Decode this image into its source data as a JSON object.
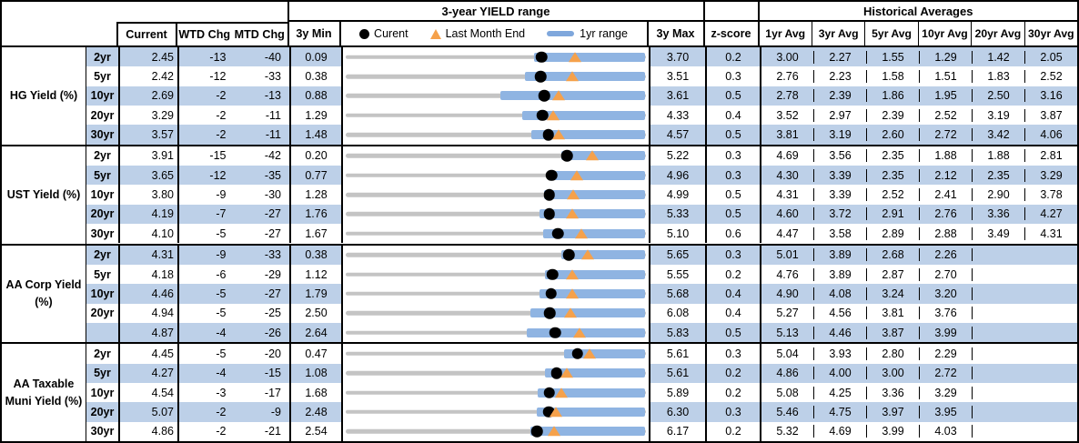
{
  "header": {
    "range_title": "3-year YIELD range",
    "historical_title": "Historical Averages",
    "col_current": "Current",
    "col_wtd": "WTD Chg",
    "col_mtd": "MTD Chg",
    "col_min": "3y Min",
    "col_max": "3y Max",
    "col_zscore": "z-score",
    "avg_cols": [
      "1yr Avg",
      "3yr Avg",
      "5yr Avg",
      "10yr Avg",
      "20yr Avg",
      "30yr Avg"
    ],
    "legend": {
      "current_label": "Curent",
      "last_month_label": "Last Month End",
      "range_label": "1yr range"
    }
  },
  "colors": {
    "stripe_blue": "#BDD0E8",
    "range_bar_blue": "#8FB4E2",
    "track_gray": "#C4C4C4",
    "triangle_orange": "#F5A14B",
    "dot_black": "#000000",
    "border_black": "#000000"
  },
  "chart_data": {
    "type": "table",
    "description_of_row_chart": "Each row has a bullet range chart spanning 3y Min to 3y Max: gray full-range track, blue 1yr-range bar, black dot = current yield, orange triangle = last month end yield.",
    "sections": [
      {
        "label": "HG Yield (%)",
        "rows": [
          {
            "tenor": "2yr",
            "current": "2.45",
            "wtd_chg": "-13",
            "mtd_chg": "-40",
            "min_3y": "0.09",
            "max_3y": "3.70",
            "z_score": "0.2",
            "avgs": [
              "3.00",
              "2.27",
              "1.55",
              "1.29",
              "1.42",
              "2.05"
            ],
            "range_chart": {
              "axis_min": 0.09,
              "axis_max": 3.7,
              "current": 2.45,
              "last_month_end": 2.85,
              "bar_1yr_lo": 2.36,
              "bar_1yr_hi": 3.7
            }
          },
          {
            "tenor": "5yr",
            "current": "2.42",
            "wtd_chg": "-12",
            "mtd_chg": "-33",
            "min_3y": "0.38",
            "max_3y": "3.51",
            "z_score": "0.3",
            "avgs": [
              "2.76",
              "2.23",
              "1.58",
              "1.51",
              "1.83",
              "2.52"
            ],
            "range_chart": {
              "axis_min": 0.38,
              "axis_max": 3.51,
              "current": 2.42,
              "last_month_end": 2.75,
              "bar_1yr_lo": 2.25,
              "bar_1yr_hi": 3.51
            }
          },
          {
            "tenor": "10yr",
            "current": "2.69",
            "wtd_chg": "-2",
            "mtd_chg": "-13",
            "min_3y": "0.88",
            "max_3y": "3.61",
            "z_score": "0.5",
            "avgs": [
              "2.78",
              "2.39",
              "1.86",
              "1.95",
              "2.50",
              "3.16"
            ],
            "range_chart": {
              "axis_min": 0.88,
              "axis_max": 3.61,
              "current": 2.69,
              "last_month_end": 2.82,
              "bar_1yr_lo": 2.29,
              "bar_1yr_hi": 3.61
            }
          },
          {
            "tenor": "20yr",
            "current": "3.29",
            "wtd_chg": "-2",
            "mtd_chg": "-11",
            "min_3y": "1.29",
            "max_3y": "4.33",
            "z_score": "0.4",
            "avgs": [
              "3.52",
              "2.97",
              "2.39",
              "2.52",
              "3.19",
              "3.87"
            ],
            "range_chart": {
              "axis_min": 1.29,
              "axis_max": 4.33,
              "current": 3.29,
              "last_month_end": 3.4,
              "bar_1yr_lo": 3.08,
              "bar_1yr_hi": 4.33
            }
          },
          {
            "tenor": "30yr",
            "current": "3.57",
            "wtd_chg": "-2",
            "mtd_chg": "-11",
            "min_3y": "1.48",
            "max_3y": "4.57",
            "z_score": "0.5",
            "avgs": [
              "3.81",
              "3.19",
              "2.60",
              "2.72",
              "3.42",
              "4.06"
            ],
            "range_chart": {
              "axis_min": 1.48,
              "axis_max": 4.57,
              "current": 3.57,
              "last_month_end": 3.68,
              "bar_1yr_lo": 3.4,
              "bar_1yr_hi": 4.57
            }
          }
        ]
      },
      {
        "label": "UST Yield (%)",
        "rows": [
          {
            "tenor": "2yr",
            "current": "3.91",
            "wtd_chg": "-15",
            "mtd_chg": "-42",
            "min_3y": "0.20",
            "max_3y": "5.22",
            "z_score": "0.3",
            "avgs": [
              "4.69",
              "3.56",
              "2.35",
              "1.88",
              "1.88",
              "2.81"
            ],
            "range_chart": {
              "axis_min": 0.2,
              "axis_max": 5.22,
              "current": 3.91,
              "last_month_end": 4.33,
              "bar_1yr_lo": 3.81,
              "bar_1yr_hi": 5.22
            }
          },
          {
            "tenor": "5yr",
            "current": "3.65",
            "wtd_chg": "-12",
            "mtd_chg": "-35",
            "min_3y": "0.77",
            "max_3y": "4.96",
            "z_score": "0.3",
            "avgs": [
              "4.30",
              "3.39",
              "2.35",
              "2.12",
              "2.35",
              "3.29"
            ],
            "range_chart": {
              "axis_min": 0.77,
              "axis_max": 4.96,
              "current": 3.65,
              "last_month_end": 4.0,
              "bar_1yr_lo": 3.6,
              "bar_1yr_hi": 4.96
            }
          },
          {
            "tenor": "10yr",
            "current": "3.80",
            "wtd_chg": "-9",
            "mtd_chg": "-30",
            "min_3y": "1.28",
            "max_3y": "4.99",
            "z_score": "0.5",
            "avgs": [
              "4.31",
              "3.39",
              "2.52",
              "2.41",
              "2.90",
              "3.78"
            ],
            "range_chart": {
              "axis_min": 1.28,
              "axis_max": 4.99,
              "current": 3.8,
              "last_month_end": 4.1,
              "bar_1yr_lo": 3.74,
              "bar_1yr_hi": 4.99
            }
          },
          {
            "tenor": "20yr",
            "current": "4.19",
            "wtd_chg": "-7",
            "mtd_chg": "-27",
            "min_3y": "1.76",
            "max_3y": "5.33",
            "z_score": "0.5",
            "avgs": [
              "4.60",
              "3.72",
              "2.91",
              "2.76",
              "3.36",
              "4.27"
            ],
            "range_chart": {
              "axis_min": 1.76,
              "axis_max": 5.33,
              "current": 4.19,
              "last_month_end": 4.46,
              "bar_1yr_lo": 4.07,
              "bar_1yr_hi": 5.33
            }
          },
          {
            "tenor": "30yr",
            "current": "4.10",
            "wtd_chg": "-5",
            "mtd_chg": "-27",
            "min_3y": "1.67",
            "max_3y": "5.10",
            "z_score": "0.6",
            "avgs": [
              "4.47",
              "3.58",
              "2.89",
              "2.88",
              "3.49",
              "4.31"
            ],
            "range_chart": {
              "axis_min": 1.67,
              "axis_max": 5.1,
              "current": 4.1,
              "last_month_end": 4.37,
              "bar_1yr_lo": 3.93,
              "bar_1yr_hi": 5.1
            }
          }
        ]
      },
      {
        "label": "AA Corp Yield (%)",
        "rows": [
          {
            "tenor": "2yr",
            "current": "4.31",
            "wtd_chg": "-9",
            "mtd_chg": "-33",
            "min_3y": "0.38",
            "max_3y": "5.65",
            "z_score": "0.3",
            "avgs": [
              "5.01",
              "3.89",
              "2.68",
              "2.26",
              "",
              ""
            ],
            "range_chart": {
              "axis_min": 0.38,
              "axis_max": 5.65,
              "current": 4.31,
              "last_month_end": 4.64,
              "bar_1yr_lo": 4.17,
              "bar_1yr_hi": 5.65
            }
          },
          {
            "tenor": "5yr",
            "current": "4.18",
            "wtd_chg": "-6",
            "mtd_chg": "-29",
            "min_3y": "1.12",
            "max_3y": "5.55",
            "z_score": "0.2",
            "avgs": [
              "4.76",
              "3.89",
              "2.87",
              "2.70",
              "",
              ""
            ],
            "range_chart": {
              "axis_min": 1.12,
              "axis_max": 5.55,
              "current": 4.18,
              "last_month_end": 4.47,
              "bar_1yr_lo": 4.07,
              "bar_1yr_hi": 5.55
            }
          },
          {
            "tenor": "10yr",
            "current": "4.46",
            "wtd_chg": "-5",
            "mtd_chg": "-27",
            "min_3y": "1.79",
            "max_3y": "5.68",
            "z_score": "0.4",
            "avgs": [
              "4.90",
              "4.08",
              "3.24",
              "3.20",
              "",
              ""
            ],
            "range_chart": {
              "axis_min": 1.79,
              "axis_max": 5.68,
              "current": 4.46,
              "last_month_end": 4.73,
              "bar_1yr_lo": 4.31,
              "bar_1yr_hi": 5.68
            }
          },
          {
            "tenor": "20yr",
            "current": "4.94",
            "wtd_chg": "-5",
            "mtd_chg": "-25",
            "min_3y": "2.50",
            "max_3y": "6.08",
            "z_score": "0.4",
            "avgs": [
              "5.27",
              "4.56",
              "3.81",
              "3.76",
              "",
              ""
            ],
            "range_chart": {
              "axis_min": 2.5,
              "axis_max": 6.08,
              "current": 4.94,
              "last_month_end": 5.19,
              "bar_1yr_lo": 4.71,
              "bar_1yr_hi": 6.08
            }
          },
          {
            "tenor": "",
            "current": "4.87",
            "wtd_chg": "-4",
            "mtd_chg": "-26",
            "min_3y": "2.64",
            "max_3y": "5.83",
            "z_score": "0.5",
            "avgs": [
              "5.13",
              "4.46",
              "3.87",
              "3.99",
              "",
              ""
            ],
            "range_chart": {
              "axis_min": 2.64,
              "axis_max": 5.83,
              "current": 4.87,
              "last_month_end": 5.13,
              "bar_1yr_lo": 4.57,
              "bar_1yr_hi": 5.83
            }
          }
        ]
      },
      {
        "label": "AA Taxable Muni Yield (%)",
        "rows": [
          {
            "tenor": "2yr",
            "current": "4.45",
            "wtd_chg": "-5",
            "mtd_chg": "-20",
            "min_3y": "0.47",
            "max_3y": "5.61",
            "z_score": "0.3",
            "avgs": [
              "5.04",
              "3.93",
              "2.80",
              "2.29",
              "",
              ""
            ],
            "range_chart": {
              "axis_min": 0.47,
              "axis_max": 5.61,
              "current": 4.45,
              "last_month_end": 4.65,
              "bar_1yr_lo": 4.22,
              "bar_1yr_hi": 5.61
            }
          },
          {
            "tenor": "5yr",
            "current": "4.27",
            "wtd_chg": "-4",
            "mtd_chg": "-15",
            "min_3y": "1.08",
            "max_3y": "5.61",
            "z_score": "0.2",
            "avgs": [
              "4.86",
              "4.00",
              "3.00",
              "2.72",
              "",
              ""
            ],
            "range_chart": {
              "axis_min": 1.08,
              "axis_max": 5.61,
              "current": 4.27,
              "last_month_end": 4.42,
              "bar_1yr_lo": 4.1,
              "bar_1yr_hi": 5.61
            }
          },
          {
            "tenor": "10yr",
            "current": "4.54",
            "wtd_chg": "-3",
            "mtd_chg": "-17",
            "min_3y": "1.68",
            "max_3y": "5.89",
            "z_score": "0.2",
            "avgs": [
              "5.08",
              "4.25",
              "3.36",
              "3.29",
              "",
              ""
            ],
            "range_chart": {
              "axis_min": 1.68,
              "axis_max": 5.89,
              "current": 4.54,
              "last_month_end": 4.71,
              "bar_1yr_lo": 4.38,
              "bar_1yr_hi": 5.89
            }
          },
          {
            "tenor": "20yr",
            "current": "5.07",
            "wtd_chg": "-2",
            "mtd_chg": "-9",
            "min_3y": "2.48",
            "max_3y": "6.30",
            "z_score": "0.3",
            "avgs": [
              "5.46",
              "4.75",
              "3.97",
              "3.95",
              "",
              ""
            ],
            "range_chart": {
              "axis_min": 2.48,
              "axis_max": 6.3,
              "current": 5.07,
              "last_month_end": 5.16,
              "bar_1yr_lo": 4.92,
              "bar_1yr_hi": 6.3
            }
          },
          {
            "tenor": "30yr",
            "current": "4.86",
            "wtd_chg": "-2",
            "mtd_chg": "-21",
            "min_3y": "2.54",
            "max_3y": "6.17",
            "z_score": "0.2",
            "avgs": [
              "5.32",
              "4.69",
              "3.99",
              "4.03",
              "",
              ""
            ],
            "range_chart": {
              "axis_min": 2.54,
              "axis_max": 6.17,
              "current": 4.86,
              "last_month_end": 5.07,
              "bar_1yr_lo": 4.78,
              "bar_1yr_hi": 6.17
            }
          }
        ]
      }
    ]
  }
}
